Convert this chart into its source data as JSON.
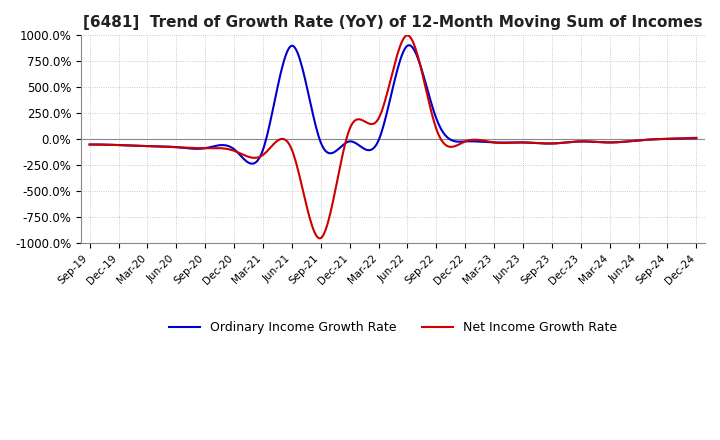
{
  "title": "[6481]  Trend of Growth Rate (YoY) of 12-Month Moving Sum of Incomes",
  "title_fontsize": 11,
  "ylim": [
    -1000,
    1000
  ],
  "yticks": [
    -1000,
    -750,
    -500,
    -250,
    0,
    250,
    500,
    750,
    1000
  ],
  "ytick_labels": [
    "-1000.0%",
    "-750.0%",
    "-500.0%",
    "-250.0%",
    "0.0%",
    "250.0%",
    "500.0%",
    "750.0%",
    "1000.0%"
  ],
  "background_color": "#ffffff",
  "grid_color": "#aaaaaa",
  "ordinary_color": "#0000cc",
  "net_color": "#cc0000",
  "legend_labels": [
    "Ordinary Income Growth Rate",
    "Net Income Growth Rate"
  ],
  "x_labels": [
    "Sep-19",
    "Dec-19",
    "Mar-20",
    "Jun-20",
    "Sep-20",
    "Dec-20",
    "Mar-21",
    "Jun-21",
    "Sep-21",
    "Dec-21",
    "Mar-22",
    "Jun-22",
    "Sep-22",
    "Dec-22",
    "Mar-23",
    "Jun-23",
    "Sep-23",
    "Dec-23",
    "Mar-24",
    "Jun-24",
    "Sep-24",
    "Dec-24"
  ],
  "ordinary": [
    -50,
    -55,
    -65,
    -75,
    -85,
    -90,
    -95,
    900,
    -30,
    -20,
    -10,
    900,
    200,
    -20,
    -30,
    -30,
    -40,
    -20,
    -30,
    -10,
    5,
    10
  ],
  "net": [
    -50,
    -55,
    -65,
    -75,
    -85,
    -90,
    -150,
    -100,
    -950,
    100,
    200,
    1000,
    100,
    -20,
    -30,
    -30,
    -40,
    -20,
    -30,
    -10,
    5,
    15
  ]
}
